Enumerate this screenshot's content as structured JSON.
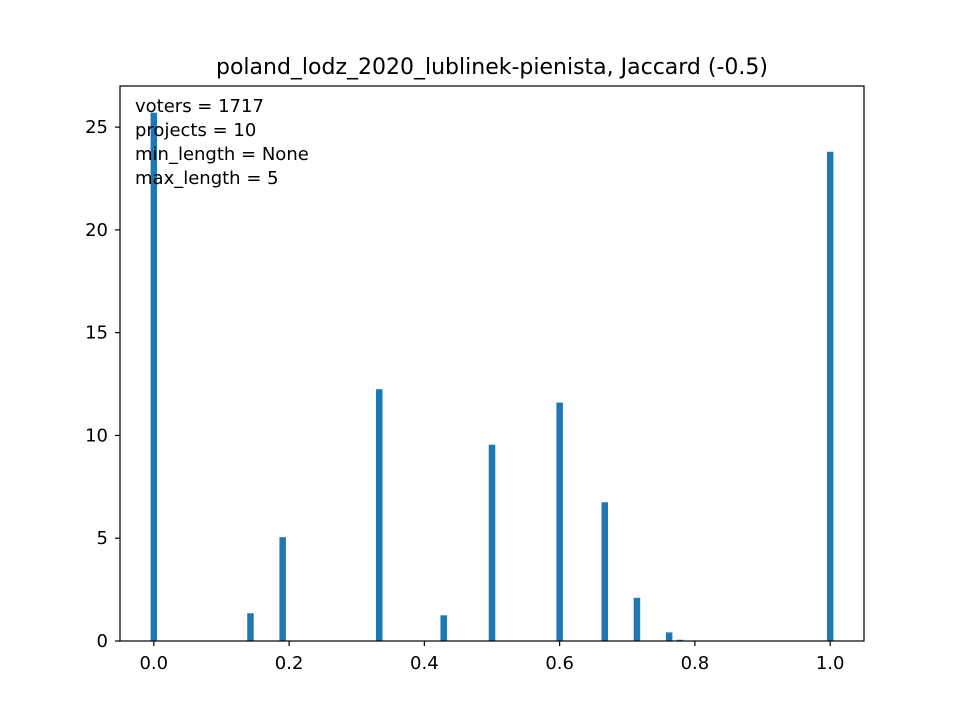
{
  "chart_data": {
    "type": "bar",
    "title": "poland_lodz_2020_lublinek-pienista, Jaccard (-0.5)",
    "xlabel": "",
    "ylabel": "",
    "xlim": [
      -0.05,
      1.05
    ],
    "ylim": [
      0,
      27
    ],
    "xticks": [
      "0.0",
      "0.2",
      "0.4",
      "0.6",
      "0.8",
      "1.0"
    ],
    "yticks": [
      "0",
      "5",
      "10",
      "15",
      "20",
      "25"
    ],
    "bar_color": "#1f77b4",
    "grid": false,
    "annotations": [
      "voters = 1717",
      "projects = 10",
      "min_length = None",
      "max_length = 5"
    ],
    "bars": [
      {
        "x": 0.0,
        "value": 25.7
      },
      {
        "x": 0.1429,
        "value": 1.35
      },
      {
        "x": 0.1905,
        "value": 5.05
      },
      {
        "x": 0.3333,
        "value": 12.25
      },
      {
        "x": 0.4286,
        "value": 1.25
      },
      {
        "x": 0.5,
        "value": 9.55
      },
      {
        "x": 0.6,
        "value": 11.6
      },
      {
        "x": 0.6667,
        "value": 6.75
      },
      {
        "x": 0.7143,
        "value": 2.1
      },
      {
        "x": 0.7619,
        "value": 0.42
      },
      {
        "x": 0.7778,
        "value": 0.06
      },
      {
        "x": 1.0,
        "value": 23.8
      }
    ]
  }
}
